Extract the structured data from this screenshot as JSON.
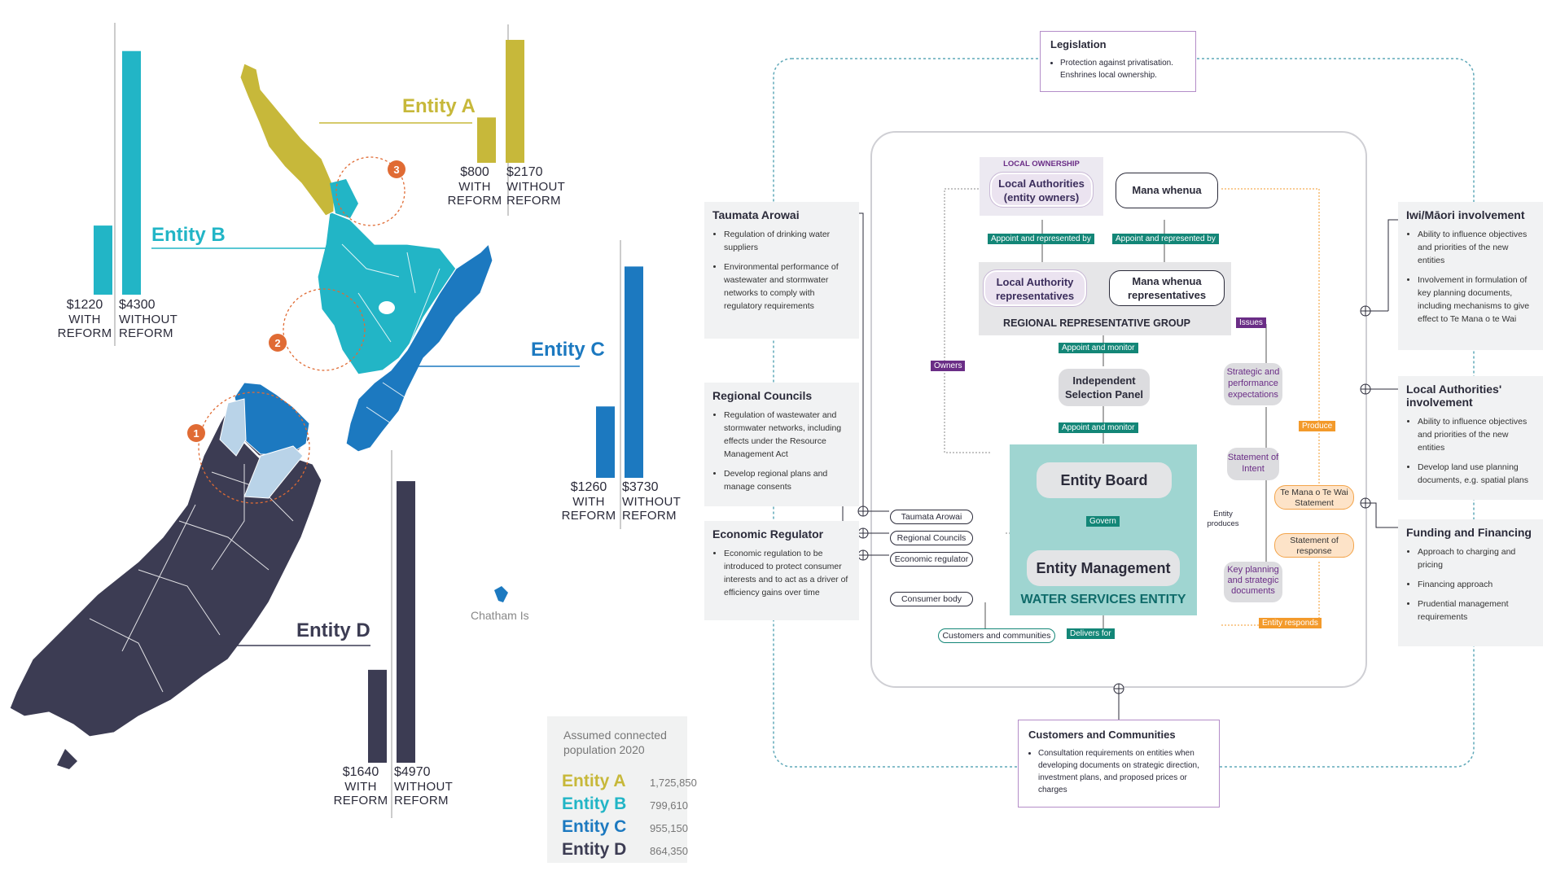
{
  "colors": {
    "entity_a": "#c7b83a",
    "entity_b": "#22b5c6",
    "entity_c": "#1c79c0",
    "entity_d": "#3c3c53",
    "teal_tag": "#138677",
    "purple_tag": "#6a2d86",
    "orange_tag": "#f39a2b"
  },
  "map": {
    "entities": [
      {
        "id": "A",
        "label": "Entity A",
        "with_value": "$800",
        "without_value": "$2170",
        "with_label": [
          "WITH",
          "REFORM"
        ],
        "without_label": [
          "WITHOUT",
          "REFORM"
        ]
      },
      {
        "id": "B",
        "label": "Entity B",
        "with_value": "$1220",
        "without_value": "$4300",
        "with_label": [
          "WITH",
          "REFORM"
        ],
        "without_label": [
          "WITHOUT",
          "REFORM"
        ]
      },
      {
        "id": "C",
        "label": "Entity C",
        "with_value": "$1260",
        "without_value": "$3730",
        "with_label": [
          "WITH",
          "REFORM"
        ],
        "without_label": [
          "WITHOUT",
          "REFORM"
        ]
      },
      {
        "id": "D",
        "label": "Entity D",
        "with_value": "$1640",
        "without_value": "$4970",
        "with_label": [
          "WITH",
          "REFORM"
        ],
        "without_label": [
          "WITHOUT",
          "REFORM"
        ]
      }
    ],
    "markers": [
      "1",
      "2",
      "3"
    ],
    "chatham_label": "Chatham Is"
  },
  "chart_data": {
    "type": "bar",
    "categories": [
      "Entity A",
      "Entity B",
      "Entity C",
      "Entity D"
    ],
    "series": [
      {
        "name": "WITH REFORM",
        "values": [
          800,
          1220,
          1260,
          1640
        ]
      },
      {
        "name": "WITHOUT REFORM",
        "values": [
          2170,
          4300,
          3730,
          4970
        ]
      }
    ]
  },
  "legend": {
    "title": "Assumed connected population 2020",
    "rows": [
      {
        "label": "Entity A",
        "value": "1,725,850"
      },
      {
        "label": "Entity B",
        "value": "799,610"
      },
      {
        "label": "Entity C",
        "value": "955,150"
      },
      {
        "label": "Entity D",
        "value": "864,350"
      }
    ]
  },
  "diagram": {
    "legislation": {
      "title": "Legislation",
      "items": [
        "Protection against privatisation.",
        "Enshrines local ownership."
      ]
    },
    "left_panels": [
      {
        "title": "Taumata Arowai",
        "items": [
          "Regulation of drinking water suppliers",
          "Environmental performance of wastewater and stormwater networks to comply with regulatory requirements"
        ]
      },
      {
        "title": "Regional Councils",
        "items": [
          "Regulation of wastewater and stormwater networks, including effects under the Resource Management Act",
          "Develop regional plans and manage consents"
        ]
      },
      {
        "title": "Economic Regulator",
        "items": [
          "Economic regulation to be introduced to protect consumer interests and to act as a driver of efficiency gains over time"
        ]
      }
    ],
    "right_panels": [
      {
        "title": "Iwi/Māori involvement",
        "items": [
          "Ability to influence objectives and priorities of the new entities",
          "Involvement in formulation of key planning documents, including mechanisms to give effect to Te Mana o te Wai"
        ]
      },
      {
        "title": "Local Authorities' involvement",
        "items": [
          "Ability to influence objectives and priorities of the new entities",
          "Develop land use planning documents, e.g. spatial plans"
        ]
      },
      {
        "title": "Funding and Financing",
        "items": [
          "Approach to charging and pricing",
          "Financing approach",
          "Prudential management requirements"
        ]
      }
    ],
    "bottom_panel": {
      "title": "Customers and Communities",
      "items": [
        "Consultation requirements on entities when developing documents on strategic direction, investment plans, and proposed prices or charges"
      ]
    },
    "local_ownership_label": "LOCAL OWNERSHIP",
    "local_authorities": "Local Authorities (entity owners)",
    "mana_whenua": "Mana whenua",
    "appoint_represented": "Appoint and represented by",
    "la_reps": "Local Authority representatives",
    "mw_reps": "Mana whenua representatives",
    "rrg": "REGIONAL REPRESENTATIVE GROUP",
    "issues": "Issues",
    "appoint_monitor": "Appoint and monitor",
    "isp": "Independent Selection Panel",
    "owners": "Owners",
    "spe": "Strategic and performance expectations",
    "soi": "Statement of Intent",
    "produce": "Produce",
    "entity_board": "Entity Board",
    "govern": "Govern",
    "entity_management": "Entity Management",
    "wse": "WATER SERVICES ENTITY",
    "entity_produces": "Entity produces",
    "tmotw": "Te Mana o Te Wai Statement",
    "sor": "Statement of response",
    "kpsd": "Key planning and strategic documents",
    "entity_responds": "Entity responds",
    "inner_pills": [
      "Taumata Arowai",
      "Regional Councils",
      "Economic regulator"
    ],
    "consumer_body": "Consumer body",
    "customers_pill": "Customers and communities",
    "delivers_for": "Delivers for"
  }
}
